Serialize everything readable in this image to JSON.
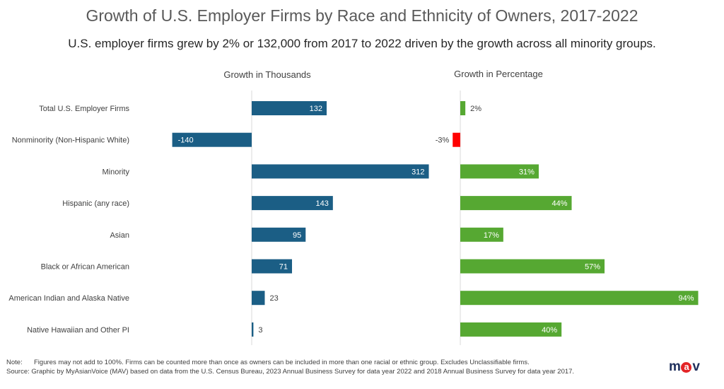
{
  "title": "Growth of U.S. Employer Firms by Race and Ethnicity of Owners,  2017-2022",
  "subtitle": "U.S. employer firms grew by 2% or 132,000 from 2017 to 2022 driven by the growth across all minority groups.",
  "note_label": "Note:",
  "note_text": "Figures may not add to 100%. Firms can be counted more than once as owners can be included in more than one racial or ethnic group.  Excludes Unclassifiable firms.",
  "source_label": "Source:",
  "source_text": "Graphic by MyAsianVoice (MAV) based on data from the U.S. Census Bureau, 2023 Annual Business Survey for data year 2022 and 2018 Annual Business Survey for data year 2017.",
  "logo": {
    "left": "m",
    "mid": "a",
    "right": "v"
  },
  "colors": {
    "thousands": "#1b5e85",
    "pct_positive": "#56a832",
    "pct_negative": "#ff0000",
    "axis": "#d9d9d9"
  },
  "chart_data": [
    {
      "type": "bar",
      "orientation": "horizontal",
      "title": "Growth in Thousands",
      "categories": [
        "Total U.S. Employer Firms",
        "Nonminority (Non-Hispanic White)",
        "Minority",
        "Hispanic (any race)",
        "Asian",
        "Black or African American",
        "American Indian and Alaska Native",
        "Native Hawaiian and Other PI"
      ],
      "values": [
        132,
        -140,
        312,
        143,
        95,
        71,
        23,
        3
      ],
      "labels": [
        "132",
        "-140",
        "312",
        "143",
        "95",
        "71",
        "23",
        "3"
      ],
      "xlim": [
        -140,
        312
      ]
    },
    {
      "type": "bar",
      "orientation": "horizontal",
      "title": "Growth in Percentage",
      "categories": [
        "Total U.S. Employer Firms",
        "Nonminority (Non-Hispanic White)",
        "Minority",
        "Hispanic (any race)",
        "Asian",
        "Black or African American",
        "American Indian and Alaska Native",
        "Native Hawaiian and Other PI"
      ],
      "values": [
        2,
        -3,
        31,
        44,
        17,
        57,
        94,
        40
      ],
      "labels": [
        "2%",
        "-3%",
        "31%",
        "44%",
        "17%",
        "57%",
        "94%",
        "40%"
      ],
      "xlim": [
        -3,
        94
      ]
    }
  ]
}
